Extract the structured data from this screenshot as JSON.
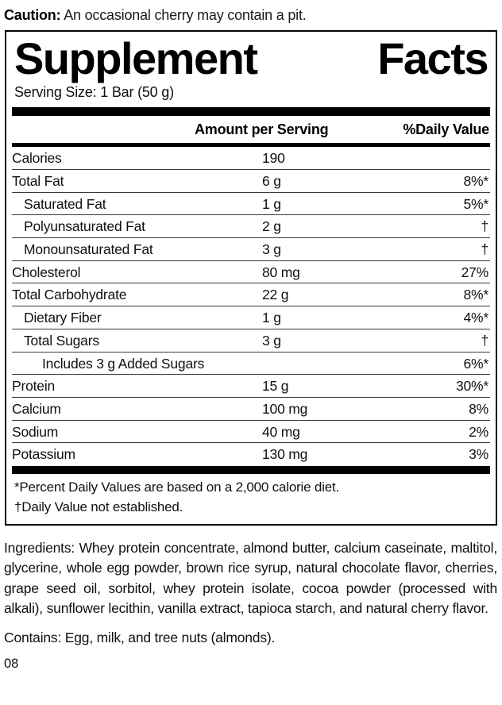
{
  "caution": {
    "label": "Caution:",
    "text": "An occasional cherry may contain a pit."
  },
  "panel": {
    "title_left": "Supplement",
    "title_right": "Facts",
    "serving_size": "Serving Size: 1 Bar (50 g)",
    "columns": {
      "amount": "Amount per Serving",
      "daily_value": "%Daily Value"
    },
    "rows": [
      {
        "name": "Calories",
        "amount": "190",
        "dv": "",
        "indent": 0
      },
      {
        "name": "Total Fat",
        "amount": "6 g",
        "dv": "8%*",
        "indent": 0
      },
      {
        "name": "Saturated Fat",
        "amount": "1 g",
        "dv": "5%*",
        "indent": 1
      },
      {
        "name": "Polyunsaturated Fat",
        "amount": "2 g",
        "dv": "†",
        "indent": 1
      },
      {
        "name": "Monounsaturated Fat",
        "amount": "3 g",
        "dv": "†",
        "indent": 1
      },
      {
        "name": "Cholesterol",
        "amount": "80 mg",
        "dv": "27%",
        "indent": 0
      },
      {
        "name": "Total Carbohydrate",
        "amount": "22 g",
        "dv": "8%*",
        "indent": 0
      },
      {
        "name": "Dietary Fiber",
        "amount": "1 g",
        "dv": "4%*",
        "indent": 1
      },
      {
        "name": "Total Sugars",
        "amount": "3 g",
        "dv": "†",
        "indent": 1
      },
      {
        "name": "Includes 3 g Added Sugars",
        "amount": "",
        "dv": "6%*",
        "indent": 2
      },
      {
        "name": "Protein",
        "amount": "15 g",
        "dv": "30%*",
        "indent": 0
      },
      {
        "name": "Calcium",
        "amount": "100 mg",
        "dv": "8%",
        "indent": 0
      },
      {
        "name": "Sodium",
        "amount": "40 mg",
        "dv": "2%",
        "indent": 0
      },
      {
        "name": "Potassium",
        "amount": "130 mg",
        "dv": "3%",
        "indent": 0
      }
    ],
    "footnotes": [
      "*Percent Daily Values are based on a 2,000 calorie diet.",
      "†Daily Value not established."
    ]
  },
  "ingredients": "Ingredients: Whey protein concentrate, almond butter, calcium caseinate, maltitol, glycerine, whole egg powder, brown rice syrup, natural chocolate flavor, cherries, grape seed oil, sorbitol, whey protein isolate, cocoa powder (processed with alkali), sunflower lecithin, vanilla extract, tapioca starch, and natural cherry flavor.",
  "contains": "Contains: Egg, milk, and tree nuts (almonds).",
  "page_number": "08",
  "colors": {
    "ink": "#000000",
    "background": "#ffffff",
    "hairline": "#3a3a3a"
  }
}
